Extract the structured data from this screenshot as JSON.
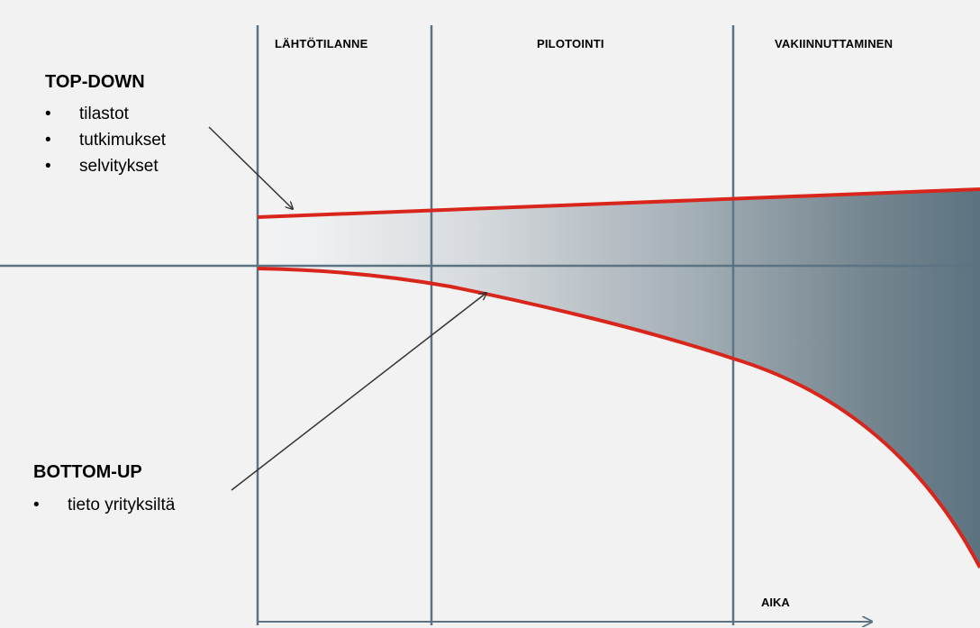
{
  "phases": [
    {
      "label": "LÄHTÖTILANNE"
    },
    {
      "label": "PILOTOINTI"
    },
    {
      "label": "VAKIINNUTTAMINEN"
    }
  ],
  "top_down": {
    "title": "TOP-DOWN",
    "bullet": "•",
    "items": [
      "tilastot",
      "tutkimukset",
      "selvitykset"
    ]
  },
  "bottom_up": {
    "title": "BOTTOM-UP",
    "bullet": "•",
    "items": [
      "tieto yrityksiltä"
    ]
  },
  "axis": {
    "label": "AIKA"
  },
  "colors": {
    "background": "#f2f2f2",
    "grid_line": "#5b7382",
    "curve": "#d9261c",
    "fill_dark": "#5b7380",
    "arrow": "#333333"
  }
}
